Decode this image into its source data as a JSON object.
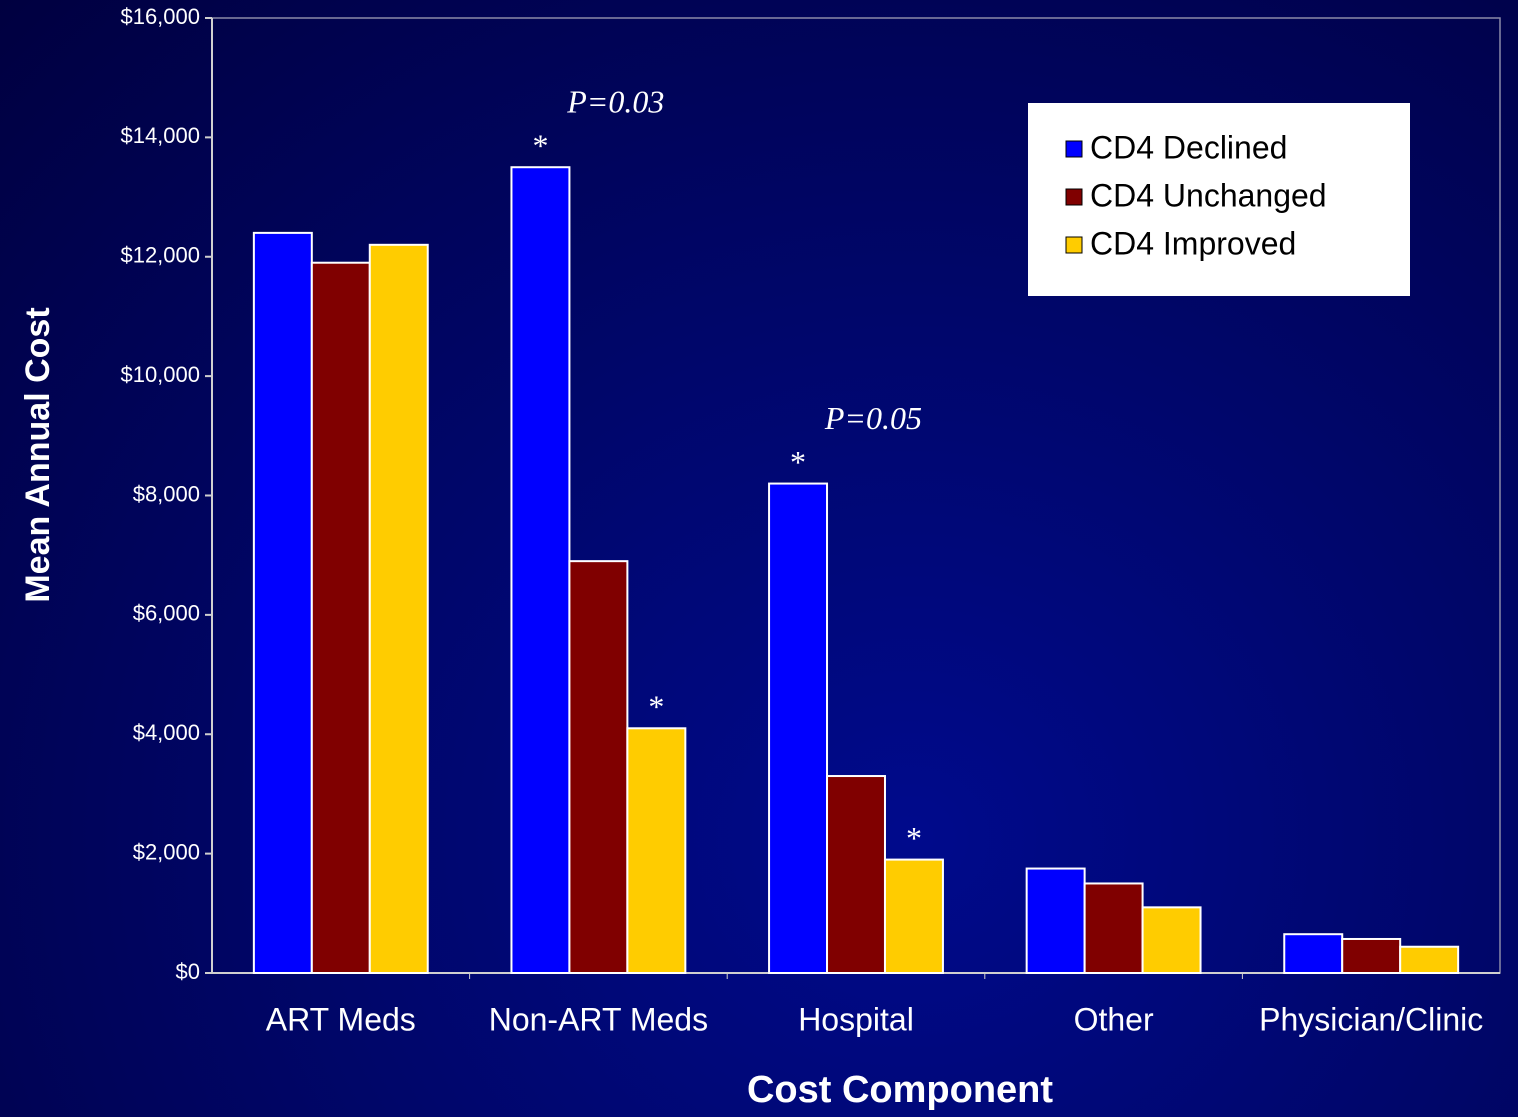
{
  "chart_data": {
    "type": "bar",
    "x_label": "Cost Component",
    "y_label": "Mean Annual Cost",
    "categories": [
      "ART Meds",
      "Non-ART Meds",
      "Hospital",
      "Other",
      "Physician/Clinic"
    ],
    "series": [
      {
        "name": "CD4 Declined",
        "color": "#0000ff",
        "values": [
          12400,
          13500,
          8200,
          1750,
          650
        ],
        "significance": [
          null,
          "*",
          "*",
          null,
          null
        ]
      },
      {
        "name": "CD4 Unchanged",
        "color": "#800000",
        "values": [
          11900,
          6900,
          3300,
          1500,
          570
        ],
        "significance": [
          null,
          null,
          null,
          null,
          null
        ]
      },
      {
        "name": "CD4 Improved",
        "color": "#ffcc00",
        "values": [
          12200,
          4100,
          1900,
          1100,
          440
        ],
        "significance": [
          null,
          "*",
          "*",
          null,
          null
        ]
      }
    ],
    "category_notes": [
      null,
      "P=0.03",
      "P=0.05",
      null,
      null
    ],
    "ylim": [
      0,
      16000
    ],
    "yticks": [
      {
        "value": 0,
        "label": "$0"
      },
      {
        "value": 2000,
        "label": "$2,000"
      },
      {
        "value": 4000,
        "label": "$4,000"
      },
      {
        "value": 6000,
        "label": "$6,000"
      },
      {
        "value": 8000,
        "label": "$8,000"
      },
      {
        "value": 10000,
        "label": "$10,000"
      },
      {
        "value": 12000,
        "label": "$12,000"
      },
      {
        "value": 14000,
        "label": "$14,000"
      },
      {
        "value": 16000,
        "label": "$16,000"
      }
    ],
    "grid": false,
    "legend": "upper right"
  }
}
